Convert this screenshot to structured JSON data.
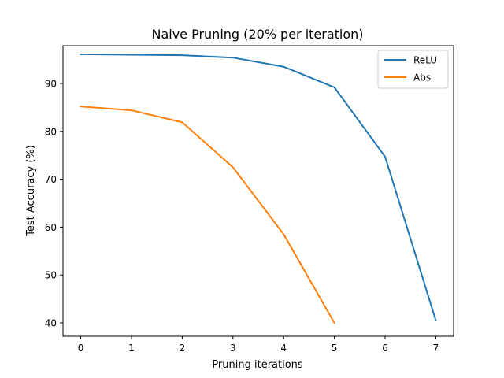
{
  "chart_data": {
    "type": "line",
    "title": "Naive Pruning (20% per iteration)",
    "xlabel": "Pruning iterations",
    "ylabel": "Test Accuracy (%)",
    "xlim": [
      -0.35,
      7.35
    ],
    "ylim": [
      37.2,
      97.9
    ],
    "xticks": [
      0,
      1,
      2,
      3,
      4,
      5,
      6,
      7
    ],
    "yticks": [
      40,
      50,
      60,
      70,
      80,
      90
    ],
    "grid": false,
    "legend_position": "top-right",
    "series": [
      {
        "name": "ReLU",
        "color": "#1f77b4",
        "x": [
          0,
          1,
          2,
          3,
          4,
          5,
          6,
          7
        ],
        "y": [
          96.1,
          96.0,
          95.9,
          95.4,
          93.5,
          89.2,
          74.7,
          40.5
        ]
      },
      {
        "name": "Abs",
        "color": "#ff7f0e",
        "x": [
          0,
          1,
          2,
          3,
          4,
          5
        ],
        "y": [
          85.2,
          84.4,
          81.9,
          72.5,
          58.5,
          40.0
        ]
      }
    ]
  }
}
